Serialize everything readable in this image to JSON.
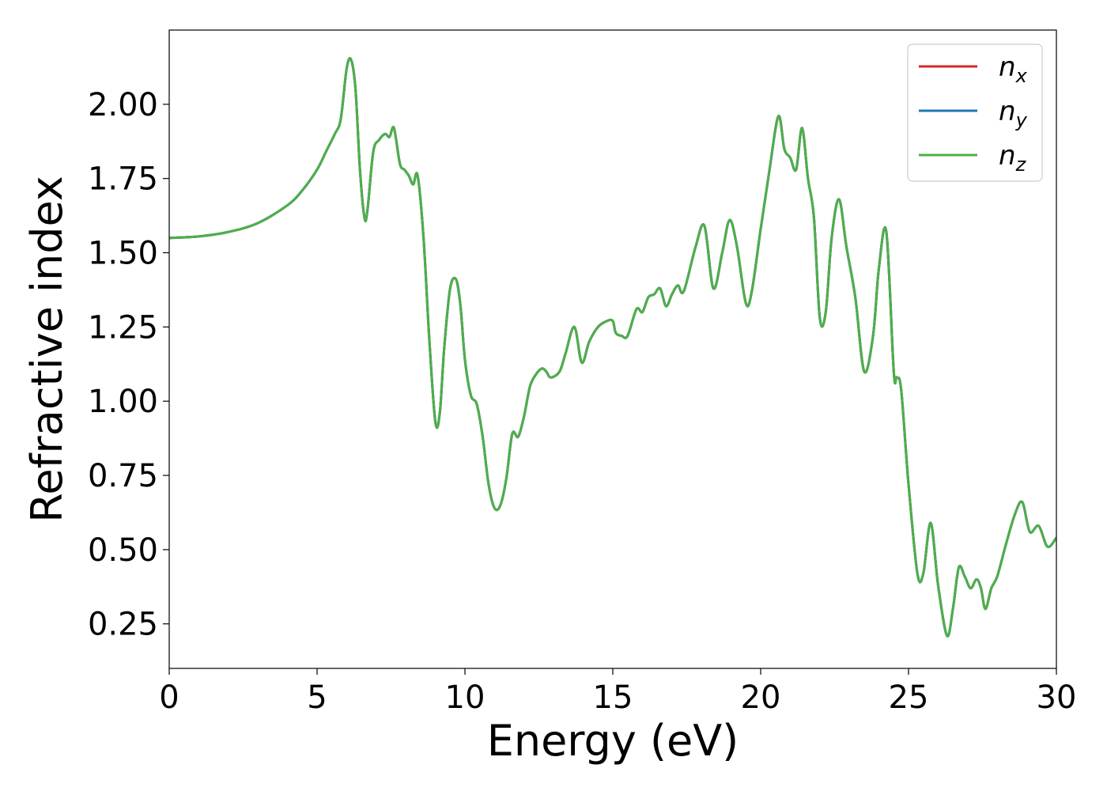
{
  "chart_data": {
    "type": "line",
    "title": "",
    "xlabel": "Energy (eV)",
    "ylabel": "Refractive index",
    "xlim": [
      0,
      30
    ],
    "ylim": [
      0.1,
      2.25
    ],
    "xticks": [
      0,
      5,
      10,
      15,
      20,
      25,
      30
    ],
    "xtick_labels": [
      "0",
      "5",
      "10",
      "15",
      "20",
      "25",
      "30"
    ],
    "yticks": [
      0.25,
      0.5,
      0.75,
      1.0,
      1.25,
      1.5,
      1.75,
      2.0
    ],
    "ytick_labels": [
      "0.25",
      "0.50",
      "0.75",
      "1.00",
      "1.25",
      "1.50",
      "1.75",
      "2.00"
    ],
    "grid": false,
    "legend_position": "top-right",
    "legend": [
      {
        "base": "n",
        "sub": "x",
        "color": "#d62728"
      },
      {
        "base": "n",
        "sub": "y",
        "color": "#1f77b4"
      },
      {
        "base": "n",
        "sub": "z",
        "color": "#4daf4a"
      }
    ],
    "x": [
      0,
      1,
      2,
      3,
      4,
      4.5,
      5,
      5.3,
      5.6,
      5.8,
      6.0,
      6.15,
      6.3,
      6.45,
      6.6,
      6.7,
      6.9,
      7.1,
      7.3,
      7.45,
      7.6,
      7.8,
      7.95,
      8.1,
      8.25,
      8.4,
      8.6,
      8.8,
      9.0,
      9.15,
      9.3,
      9.5,
      9.7,
      9.85,
      10.0,
      10.2,
      10.4,
      10.6,
      10.8,
      11.0,
      11.2,
      11.4,
      11.6,
      11.8,
      12.0,
      12.2,
      12.4,
      12.6,
      12.75,
      12.9,
      13.2,
      13.4,
      13.7,
      13.95,
      14.2,
      14.5,
      14.8,
      15.0,
      15.1,
      15.3,
      15.5,
      15.8,
      16.0,
      16.2,
      16.4,
      16.6,
      16.8,
      17.0,
      17.2,
      17.4,
      17.8,
      18.1,
      18.4,
      18.7,
      18.95,
      19.2,
      19.5,
      19.7,
      20.0,
      20.3,
      20.6,
      20.8,
      21.0,
      21.2,
      21.4,
      21.6,
      21.8,
      22.0,
      22.2,
      22.4,
      22.65,
      22.9,
      23.2,
      23.5,
      23.8,
      24.0,
      24.25,
      24.5,
      24.6,
      24.75,
      25.0,
      25.3,
      25.5,
      25.75,
      26.0,
      26.3,
      26.5,
      26.7,
      26.9,
      27.1,
      27.3,
      27.45,
      27.6,
      27.8,
      28.0,
      28.3,
      28.6,
      28.85,
      29.1,
      29.4,
      29.7,
      30.0
    ],
    "series": [
      {
        "name": "",
        "color": "#d62728",
        "values": [
          1.55,
          1.555,
          1.57,
          1.6,
          1.66,
          1.71,
          1.78,
          1.84,
          1.9,
          1.95,
          2.12,
          2.15,
          2.05,
          1.78,
          1.62,
          1.64,
          1.84,
          1.88,
          1.9,
          1.89,
          1.92,
          1.8,
          1.78,
          1.76,
          1.73,
          1.76,
          1.55,
          1.2,
          0.93,
          0.96,
          1.18,
          1.38,
          1.41,
          1.32,
          1.14,
          1.02,
          0.99,
          0.88,
          0.72,
          0.64,
          0.65,
          0.74,
          0.89,
          0.88,
          0.95,
          1.05,
          1.09,
          1.11,
          1.1,
          1.08,
          1.1,
          1.16,
          1.25,
          1.13,
          1.2,
          1.25,
          1.27,
          1.27,
          1.23,
          1.22,
          1.22,
          1.31,
          1.3,
          1.35,
          1.36,
          1.38,
          1.32,
          1.36,
          1.39,
          1.37,
          1.52,
          1.59,
          1.38,
          1.5,
          1.61,
          1.52,
          1.33,
          1.37,
          1.58,
          1.78,
          1.96,
          1.85,
          1.82,
          1.78,
          1.92,
          1.75,
          1.62,
          1.28,
          1.3,
          1.55,
          1.68,
          1.52,
          1.35,
          1.1,
          1.22,
          1.45,
          1.57,
          1.1,
          1.08,
          1.04,
          0.72,
          0.42,
          0.42,
          0.59,
          0.38,
          0.21,
          0.3,
          0.44,
          0.41,
          0.37,
          0.4,
          0.37,
          0.3,
          0.37,
          0.41,
          0.52,
          0.62,
          0.66,
          0.56,
          0.58,
          0.51,
          0.54
        ]
      },
      {
        "name": "",
        "color": "#1f77b4",
        "values": [
          1.55,
          1.555,
          1.57,
          1.6,
          1.66,
          1.71,
          1.78,
          1.84,
          1.9,
          1.95,
          2.12,
          2.15,
          2.05,
          1.78,
          1.62,
          1.64,
          1.84,
          1.88,
          1.9,
          1.89,
          1.92,
          1.8,
          1.78,
          1.76,
          1.73,
          1.76,
          1.55,
          1.2,
          0.93,
          0.96,
          1.18,
          1.38,
          1.41,
          1.32,
          1.14,
          1.02,
          0.99,
          0.88,
          0.72,
          0.64,
          0.65,
          0.74,
          0.89,
          0.88,
          0.95,
          1.05,
          1.09,
          1.11,
          1.1,
          1.08,
          1.1,
          1.16,
          1.25,
          1.13,
          1.2,
          1.25,
          1.27,
          1.27,
          1.23,
          1.22,
          1.22,
          1.31,
          1.3,
          1.35,
          1.36,
          1.38,
          1.32,
          1.36,
          1.39,
          1.37,
          1.52,
          1.59,
          1.38,
          1.5,
          1.61,
          1.52,
          1.33,
          1.37,
          1.58,
          1.78,
          1.96,
          1.85,
          1.82,
          1.78,
          1.92,
          1.75,
          1.62,
          1.28,
          1.3,
          1.55,
          1.68,
          1.52,
          1.35,
          1.1,
          1.22,
          1.45,
          1.57,
          1.1,
          1.08,
          1.04,
          0.72,
          0.42,
          0.42,
          0.59,
          0.38,
          0.21,
          0.3,
          0.44,
          0.41,
          0.37,
          0.4,
          0.37,
          0.3,
          0.37,
          0.41,
          0.52,
          0.62,
          0.66,
          0.56,
          0.58,
          0.51,
          0.54
        ]
      },
      {
        "name": "",
        "color": "#4daf4a",
        "values": [
          1.55,
          1.555,
          1.57,
          1.6,
          1.66,
          1.71,
          1.78,
          1.84,
          1.9,
          1.95,
          2.12,
          2.15,
          2.05,
          1.78,
          1.62,
          1.64,
          1.84,
          1.88,
          1.9,
          1.89,
          1.92,
          1.8,
          1.78,
          1.76,
          1.73,
          1.76,
          1.55,
          1.2,
          0.93,
          0.96,
          1.18,
          1.38,
          1.41,
          1.32,
          1.14,
          1.02,
          0.99,
          0.88,
          0.72,
          0.64,
          0.65,
          0.74,
          0.89,
          0.88,
          0.95,
          1.05,
          1.09,
          1.11,
          1.1,
          1.08,
          1.1,
          1.16,
          1.25,
          1.13,
          1.2,
          1.25,
          1.27,
          1.27,
          1.23,
          1.22,
          1.22,
          1.31,
          1.3,
          1.35,
          1.36,
          1.38,
          1.32,
          1.36,
          1.39,
          1.37,
          1.52,
          1.59,
          1.38,
          1.5,
          1.61,
          1.52,
          1.33,
          1.37,
          1.58,
          1.78,
          1.96,
          1.85,
          1.82,
          1.78,
          1.92,
          1.75,
          1.62,
          1.28,
          1.3,
          1.55,
          1.68,
          1.52,
          1.35,
          1.1,
          1.22,
          1.45,
          1.57,
          1.1,
          1.08,
          1.04,
          0.72,
          0.42,
          0.42,
          0.59,
          0.38,
          0.21,
          0.3,
          0.44,
          0.41,
          0.37,
          0.4,
          0.37,
          0.3,
          0.37,
          0.41,
          0.52,
          0.62,
          0.66,
          0.56,
          0.58,
          0.51,
          0.54
        ]
      }
    ]
  }
}
